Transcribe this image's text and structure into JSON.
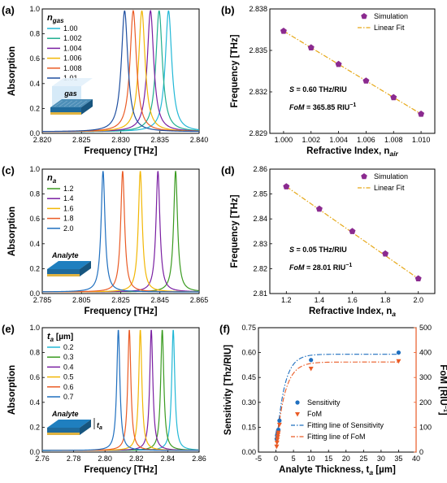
{
  "chart_data": [
    {
      "id": "a",
      "panel_label": "(a)",
      "type": "line",
      "xlabel": "Frequency [THz]",
      "ylabel": "Absorption",
      "xlim": [
        2.82,
        2.84
      ],
      "ylim": [
        0,
        1.0
      ],
      "xticks": [
        "2.820",
        "2.825",
        "2.830",
        "2.835",
        "2.840"
      ],
      "yticks": [
        "0.0",
        "0.2",
        "0.4",
        "0.6",
        "0.8",
        "1.0"
      ],
      "legend_title_main": "n",
      "legend_title_sub": "gas",
      "inset_label": "gas",
      "peak_width": 0.0005,
      "series": [
        {
          "name": "1.00",
          "peak": 2.8361,
          "color": "#22b8d6"
        },
        {
          "name": "1.002",
          "peak": 2.8349,
          "color": "#1fae8f"
        },
        {
          "name": "1.004",
          "peak": 2.8338,
          "color": "#7a1fa2"
        },
        {
          "name": "1.006",
          "peak": 2.8327,
          "color": "#f2b705"
        },
        {
          "name": "1.008",
          "peak": 2.8316,
          "color": "#ea5b25"
        },
        {
          "name": "1.01",
          "peak": 2.8305,
          "color": "#1f4fa0"
        }
      ]
    },
    {
      "id": "b",
      "panel_label": "(b)",
      "type": "scatter",
      "xlabel": "Refractive Index, n",
      "xlabel_sub": "air",
      "ylabel": "Frequency [THz]",
      "xlim": [
        0.999,
        1.011
      ],
      "ylim": [
        2.829,
        2.838
      ],
      "xticks": [
        "1.000",
        "1.002",
        "1.004",
        "1.006",
        "1.008",
        "1.010"
      ],
      "yticks": [
        "2.829",
        "2.832",
        "2.835",
        "2.838"
      ],
      "x": [
        1.0,
        1.002,
        1.004,
        1.006,
        1.008,
        1.01
      ],
      "y": [
        2.8364,
        2.8352,
        2.834,
        2.8328,
        2.8316,
        2.8304
      ],
      "legend": [
        "Simulation",
        "Linear Fit"
      ],
      "ann1_var": "S",
      "ann1_text": " = 0.60 THz/RIU",
      "ann2_var": "FoM",
      "ann2_text": " = 365.85 RIU",
      "ann2_sup": "−1"
    },
    {
      "id": "c",
      "panel_label": "(c)",
      "type": "line",
      "xlabel": "Frequency [THz]",
      "ylabel": "Absorption",
      "xlim": [
        2.785,
        2.865
      ],
      "ylim": [
        0,
        1.0
      ],
      "xticks": [
        "2.785",
        "2.805",
        "2.825",
        "2.845",
        "2.865"
      ],
      "yticks": [
        "0.0",
        "0.2",
        "0.4",
        "0.6",
        "0.8",
        "1.0"
      ],
      "legend_title_main": "n",
      "legend_title_sub": "a",
      "inset_label": "Analyte",
      "peak_width": 0.0012,
      "series": [
        {
          "name": "1.2",
          "peak": 2.853,
          "color": "#3a9b20"
        },
        {
          "name": "1.4",
          "peak": 2.844,
          "color": "#7a1fa2"
        },
        {
          "name": "1.6",
          "peak": 2.835,
          "color": "#f2b705"
        },
        {
          "name": "1.8",
          "peak": 2.826,
          "color": "#ea5b25"
        },
        {
          "name": "2.0",
          "peak": 2.816,
          "color": "#1f6fbf"
        }
      ]
    },
    {
      "id": "d",
      "panel_label": "(d)",
      "type": "scatter",
      "xlabel": "Refractive Index, n",
      "xlabel_sub": "a",
      "ylabel": "Frequency [THz]",
      "xlim": [
        1.1,
        2.1
      ],
      "ylim": [
        2.81,
        2.86
      ],
      "xticks": [
        "1.2",
        "1.4",
        "1.6",
        "1.8",
        "2.0"
      ],
      "yticks": [
        "2.81",
        "2.82",
        "2.83",
        "2.84",
        "2.85",
        "2.86"
      ],
      "x": [
        1.2,
        1.4,
        1.6,
        1.8,
        2.0
      ],
      "y": [
        2.853,
        2.844,
        2.835,
        2.826,
        2.816
      ],
      "legend": [
        "Simulation",
        "Linear Fit"
      ],
      "ann1_var": "S",
      "ann1_text": " = 0.05 THz/RIU",
      "ann2_var": "FoM",
      "ann2_text": " = 28.01 RIU",
      "ann2_sup": "−1"
    },
    {
      "id": "e",
      "panel_label": "(e)",
      "type": "line",
      "xlabel": "Frequency [THz]",
      "ylabel": "Absorption",
      "xlim": [
        2.76,
        2.86
      ],
      "ylim": [
        0,
        1.0
      ],
      "xticks": [
        "2.76",
        "2.78",
        "2.80",
        "2.82",
        "2.84",
        "2.86"
      ],
      "yticks": [
        "0.0",
        "0.2",
        "0.4",
        "0.6",
        "0.8",
        "1.0"
      ],
      "legend_title_main": "t",
      "legend_title_sub": "a",
      "legend_title_unit": " [µm]",
      "inset_label": "Analyte",
      "inset_sub_main": "t",
      "inset_sub_sub": "a",
      "peak_width": 0.0012,
      "series": [
        {
          "name": "0.2",
          "peak": 2.8435,
          "color": "#22b8d6"
        },
        {
          "name": "0.3",
          "peak": 2.8365,
          "color": "#3a9b20"
        },
        {
          "name": "0.4",
          "peak": 2.8295,
          "color": "#7a1fa2"
        },
        {
          "name": "0.5",
          "peak": 2.8225,
          "color": "#f2b705"
        },
        {
          "name": "0.6",
          "peak": 2.8155,
          "color": "#ea5b25"
        },
        {
          "name": "0.7",
          "peak": 2.8085,
          "color": "#1f6fbf"
        }
      ]
    },
    {
      "id": "f",
      "panel_label": "(f)",
      "type": "scatter",
      "xlabel": "Analyte Thickness, t",
      "xlabel_sub": "a",
      "xlabel_unit": " [µm]",
      "ylabel": "Sensitivity [Thz/RIU]",
      "ylabel_right": "FoM [RIU",
      "ylabel_right_sup": "−1",
      "ylabel_right_end": "]",
      "xlim": [
        -5,
        40
      ],
      "ylim": [
        0,
        0.75
      ],
      "ylim_right": [
        0,
        500
      ],
      "xticks": [
        "-5",
        "0",
        "5",
        "10",
        "15",
        "20",
        "25",
        "30",
        "35",
        "40"
      ],
      "yticks": [
        "0.00",
        "0.15",
        "0.30",
        "0.45",
        "0.60",
        "0.75"
      ],
      "yticks_right": [
        "0",
        "100",
        "200",
        "300",
        "400",
        "500"
      ],
      "series": [
        {
          "name": "Sensitivity",
          "x": [
            0.2,
            0.3,
            0.4,
            0.5,
            0.6,
            0.7,
            1,
            10,
            35
          ],
          "y": [
            0.08,
            0.1,
            0.11,
            0.12,
            0.13,
            0.135,
            0.19,
            0.555,
            0.6
          ],
          "color": "#1f6fbf"
        },
        {
          "name": "FoM",
          "x": [
            0.2,
            0.3,
            0.4,
            0.5,
            0.6,
            0.7,
            1,
            10,
            35
          ],
          "y": [
            22,
            38,
            50,
            60,
            70,
            78,
            110,
            335,
            365
          ],
          "color": "#ea5b25"
        }
      ],
      "legend": [
        "Sensitivity",
        "FoM",
        "Fitting line of Sensitivity",
        "Fitting line of FoM"
      ]
    }
  ]
}
